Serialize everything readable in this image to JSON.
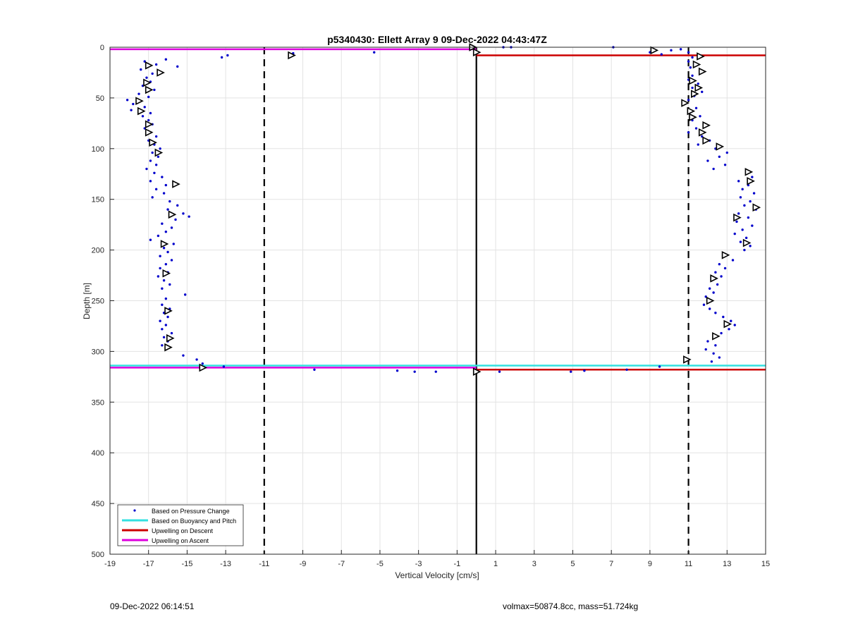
{
  "chart_data": {
    "type": "scatter",
    "title": "p5340430: Ellett Array 9 09-Dec-2022 04:43:47Z",
    "xlabel": "Vertical Velocity [cm/s]",
    "ylabel": "Depth [m]",
    "xlim": [
      -19,
      15
    ],
    "ylim": [
      500,
      0
    ],
    "y_reversed": true,
    "grid": true,
    "xticks": [
      -19,
      -17,
      -15,
      -13,
      -11,
      -9,
      -7,
      -5,
      -3,
      -1,
      1,
      3,
      5,
      7,
      9,
      11,
      13,
      15
    ],
    "yticks": [
      0,
      50,
      100,
      150,
      200,
      250,
      300,
      350,
      400,
      450,
      500
    ],
    "legend": {
      "placement": "bottom-left",
      "entries": [
        {
          "label": "Based on Pressure Change",
          "color": "#0000cc",
          "marker": "dot"
        },
        {
          "label": "Based on Buoyancy and Pitch",
          "color": "#33e0e0",
          "marker": "line"
        },
        {
          "label": "Upwelling on Descent",
          "color": "#cc0000",
          "marker": "line"
        },
        {
          "label": "Upwelling on Ascent",
          "color": "#dd00dd",
          "marker": "line"
        }
      ]
    },
    "reference_lines": {
      "dashed_x": [
        -11,
        11
      ],
      "solid_x": [
        0
      ],
      "horizontal": [
        {
          "series": "Upwelling on Ascent",
          "depth": 2,
          "x_from": -19,
          "x_to": 0,
          "color": "#dd00dd"
        },
        {
          "series": "Upwelling on Descent",
          "depth": 8,
          "x_from": 0,
          "x_to": 15,
          "color": "#cc0000"
        },
        {
          "series": "Based on Buoyancy and Pitch",
          "depth": 314,
          "x_from": -19,
          "x_to": 15,
          "color": "#33e0e0"
        },
        {
          "series": "Upwelling on Ascent",
          "depth": 316,
          "x_from": -19,
          "x_to": 0,
          "color": "#dd00dd"
        },
        {
          "series": "Upwelling on Descent",
          "depth": 318,
          "x_from": 0,
          "x_to": 15,
          "color": "#cc0000"
        }
      ]
    },
    "pressure_points": [
      [
        -17.2,
        14
      ],
      [
        -16.6,
        17
      ],
      [
        -16.1,
        12
      ],
      [
        -15.5,
        19
      ],
      [
        -17.4,
        22
      ],
      [
        -16.8,
        26
      ],
      [
        -17.1,
        30
      ],
      [
        -16.9,
        34
      ],
      [
        -17.3,
        38
      ],
      [
        -16.7,
        42
      ],
      [
        -17.5,
        46
      ],
      [
        -17.0,
        49
      ],
      [
        -18.1,
        52
      ],
      [
        -17.8,
        56
      ],
      [
        -17.2,
        59
      ],
      [
        -17.9,
        62
      ],
      [
        -16.9,
        65
      ],
      [
        -17.3,
        68
      ],
      [
        -17.0,
        72
      ],
      [
        -16.8,
        76
      ],
      [
        -17.2,
        80
      ],
      [
        -16.9,
        84
      ],
      [
        -16.6,
        88
      ],
      [
        -17.0,
        92
      ],
      [
        -16.7,
        96
      ],
      [
        -16.4,
        100
      ],
      [
        -16.8,
        104
      ],
      [
        -16.5,
        108
      ],
      [
        -16.9,
        112
      ],
      [
        -16.6,
        116
      ],
      [
        -17.1,
        120
      ],
      [
        -16.7,
        124
      ],
      [
        -16.3,
        128
      ],
      [
        -16.9,
        132
      ],
      [
        -16.1,
        136
      ],
      [
        -16.6,
        140
      ],
      [
        -16.2,
        144
      ],
      [
        -16.8,
        148
      ],
      [
        -15.9,
        152
      ],
      [
        -15.5,
        156
      ],
      [
        -16.0,
        160
      ],
      [
        -15.2,
        164
      ],
      [
        -14.9,
        167
      ],
      [
        -15.6,
        170
      ],
      [
        -16.3,
        174
      ],
      [
        -15.8,
        178
      ],
      [
        -16.1,
        182
      ],
      [
        -16.5,
        186
      ],
      [
        -16.9,
        190
      ],
      [
        -15.7,
        194
      ],
      [
        -16.2,
        198
      ],
      [
        -16.0,
        202
      ],
      [
        -16.4,
        206
      ],
      [
        -15.8,
        210
      ],
      [
        -16.1,
        214
      ],
      [
        -16.4,
        218
      ],
      [
        -16.0,
        222
      ],
      [
        -16.5,
        226
      ],
      [
        -16.2,
        230
      ],
      [
        -15.9,
        234
      ],
      [
        -16.3,
        238
      ],
      [
        -15.1,
        244
      ],
      [
        -16.1,
        248
      ],
      [
        -16.3,
        254
      ],
      [
        -15.9,
        258
      ],
      [
        -16.2,
        262
      ],
      [
        -16.0,
        266
      ],
      [
        -16.4,
        270
      ],
      [
        -16.1,
        274
      ],
      [
        -16.3,
        278
      ],
      [
        -15.8,
        282
      ],
      [
        -16.2,
        286
      ],
      [
        -16.0,
        290
      ],
      [
        -16.3,
        294
      ],
      [
        -16.1,
        298
      ],
      [
        -15.2,
        304
      ],
      [
        -14.5,
        308
      ],
      [
        -14.2,
        312
      ],
      [
        -13.1,
        315
      ],
      [
        -13.2,
        10
      ],
      [
        -12.9,
        8
      ],
      [
        -9.5,
        6
      ],
      [
        -5.3,
        5
      ],
      [
        -8.4,
        318
      ],
      [
        -4.1,
        319
      ],
      [
        -3.2,
        320
      ],
      [
        -2.1,
        320
      ],
      [
        1.2,
        320
      ],
      [
        4.9,
        320
      ],
      [
        5.6,
        319
      ],
      [
        7.8,
        318
      ],
      [
        9.5,
        315
      ],
      [
        1.4,
        0
      ],
      [
        1.8,
        0
      ],
      [
        7.1,
        0
      ],
      [
        9.0,
        5
      ],
      [
        9.6,
        7
      ],
      [
        10.1,
        3
      ],
      [
        10.6,
        2
      ],
      [
        11.0,
        5
      ],
      [
        11.2,
        10
      ],
      [
        11.5,
        8
      ],
      [
        11.0,
        14
      ],
      [
        11.4,
        17
      ],
      [
        11.1,
        20
      ],
      [
        11.6,
        24
      ],
      [
        11.2,
        28
      ],
      [
        11.0,
        32
      ],
      [
        11.5,
        36
      ],
      [
        11.2,
        40
      ],
      [
        11.7,
        44
      ],
      [
        11.3,
        48
      ],
      [
        11.0,
        52
      ],
      [
        10.8,
        56
      ],
      [
        11.4,
        60
      ],
      [
        11.1,
        64
      ],
      [
        11.6,
        68
      ],
      [
        11.2,
        72
      ],
      [
        11.8,
        76
      ],
      [
        11.4,
        80
      ],
      [
        11.0,
        84
      ],
      [
        11.7,
        88
      ],
      [
        12.1,
        92
      ],
      [
        11.5,
        96
      ],
      [
        12.4,
        100
      ],
      [
        13.0,
        104
      ],
      [
        12.6,
        108
      ],
      [
        12.0,
        112
      ],
      [
        12.9,
        116
      ],
      [
        12.3,
        120
      ],
      [
        14.0,
        124
      ],
      [
        14.3,
        128
      ],
      [
        13.6,
        132
      ],
      [
        14.1,
        136
      ],
      [
        13.8,
        140
      ],
      [
        14.4,
        144
      ],
      [
        13.7,
        148
      ],
      [
        14.2,
        152
      ],
      [
        13.9,
        156
      ],
      [
        14.5,
        160
      ],
      [
        13.6,
        164
      ],
      [
        14.1,
        168
      ],
      [
        13.5,
        172
      ],
      [
        14.3,
        176
      ],
      [
        13.8,
        180
      ],
      [
        13.4,
        184
      ],
      [
        14.0,
        188
      ],
      [
        13.7,
        192
      ],
      [
        14.2,
        196
      ],
      [
        13.9,
        200
      ],
      [
        12.9,
        204
      ],
      [
        13.3,
        210
      ],
      [
        12.6,
        214
      ],
      [
        12.9,
        218
      ],
      [
        12.4,
        222
      ],
      [
        12.7,
        226
      ],
      [
        12.2,
        230
      ],
      [
        12.5,
        234
      ],
      [
        12.1,
        238
      ],
      [
        12.3,
        242
      ],
      [
        11.9,
        246
      ],
      [
        12.2,
        250
      ],
      [
        11.8,
        254
      ],
      [
        12.1,
        258
      ],
      [
        12.4,
        262
      ],
      [
        12.8,
        266
      ],
      [
        13.2,
        270
      ],
      [
        13.4,
        274
      ],
      [
        13.1,
        278
      ],
      [
        12.7,
        282
      ],
      [
        12.3,
        286
      ],
      [
        12.0,
        290
      ],
      [
        12.4,
        294
      ],
      [
        11.9,
        298
      ],
      [
        12.3,
        302
      ],
      [
        12.6,
        306
      ],
      [
        12.2,
        310
      ],
      [
        10.9,
        308
      ]
    ],
    "ascent_markers": [
      [
        -17.0,
        18
      ],
      [
        -16.4,
        25
      ],
      [
        -17.1,
        35
      ],
      [
        -17.0,
        42
      ],
      [
        -17.5,
        53
      ],
      [
        -17.4,
        63
      ],
      [
        -17.0,
        76
      ],
      [
        -17.0,
        84
      ],
      [
        -16.8,
        94
      ],
      [
        -16.5,
        104
      ],
      [
        -15.6,
        135
      ],
      [
        -15.8,
        165
      ],
      [
        -16.2,
        194
      ],
      [
        -16.1,
        223
      ],
      [
        -16.0,
        260
      ],
      [
        -15.9,
        287
      ],
      [
        -16.0,
        296
      ],
      [
        -14.2,
        316
      ],
      [
        -9.6,
        8
      ],
      [
        -0.2,
        0
      ],
      [
        0.0,
        5
      ],
      [
        0.0,
        320
      ],
      [
        9.2,
        3
      ]
    ],
    "descent_markers": [
      [
        11.6,
        9
      ],
      [
        11.4,
        17
      ],
      [
        11.7,
        24
      ],
      [
        11.2,
        33
      ],
      [
        11.5,
        40
      ],
      [
        11.3,
        46
      ],
      [
        10.8,
        55
      ],
      [
        11.1,
        63
      ],
      [
        11.2,
        69
      ],
      [
        11.9,
        77
      ],
      [
        11.7,
        84
      ],
      [
        11.9,
        92
      ],
      [
        12.6,
        98
      ],
      [
        14.1,
        123
      ],
      [
        14.2,
        132
      ],
      [
        14.5,
        158
      ],
      [
        13.5,
        168
      ],
      [
        14.0,
        193
      ],
      [
        12.9,
        205
      ],
      [
        12.3,
        228
      ],
      [
        12.1,
        250
      ],
      [
        13.0,
        273
      ],
      [
        12.4,
        285
      ],
      [
        10.9,
        308
      ]
    ]
  },
  "footer": {
    "left": "09-Dec-2022 06:14:51",
    "right": "volmax=50874.8cc, mass=51.724kg"
  }
}
